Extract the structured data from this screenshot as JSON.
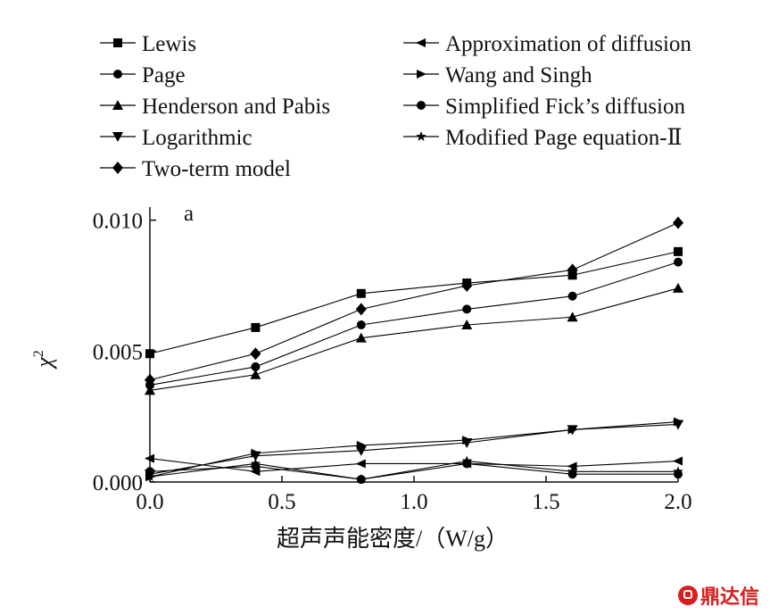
{
  "chart_data": {
    "type": "line",
    "panel_label": "a",
    "xlabel": "超声声能密度/（W/g）",
    "ylabel": "χ",
    "ylabel_superscript": "2",
    "x": [
      0.0,
      0.4,
      0.8,
      1.2,
      1.6,
      2.0
    ],
    "xlim": [
      0.0,
      2.0
    ],
    "ylim": [
      0.0,
      0.0105
    ],
    "xticks": [
      "0.0",
      "0.5",
      "1.0",
      "1.5",
      "2.0"
    ],
    "xtick_values": [
      0.0,
      0.5,
      1.0,
      1.5,
      2.0
    ],
    "yticks": [
      "0.000",
      "0.005",
      "0.010"
    ],
    "ytick_values": [
      0.0,
      0.005,
      0.01
    ],
    "grid": false,
    "legend_position": "top",
    "series": [
      {
        "name": "Lewis",
        "marker": "square",
        "values": [
          0.0049,
          0.0059,
          0.0072,
          0.0076,
          0.0079,
          0.0088
        ]
      },
      {
        "name": "Page",
        "marker": "circle",
        "values": [
          0.0037,
          0.0044,
          0.006,
          0.0066,
          0.0071,
          0.0084
        ]
      },
      {
        "name": "Henderson and Pabis",
        "marker": "triangle-up",
        "values": [
          0.0035,
          0.0041,
          0.0055,
          0.006,
          0.0063,
          0.0074
        ]
      },
      {
        "name": "Logarithmic",
        "marker": "triangle-down",
        "values": [
          0.0003,
          0.001,
          0.0012,
          0.0015,
          0.002,
          0.0022
        ]
      },
      {
        "name": "Two-term model",
        "marker": "diamond",
        "values": [
          0.0039,
          0.0049,
          0.0066,
          0.0075,
          0.0081,
          0.0099
        ]
      },
      {
        "name": "Approximation of diffusion",
        "marker": "triangle-left",
        "values": [
          0.0009,
          0.0004,
          0.0007,
          0.0007,
          0.0006,
          0.0008
        ]
      },
      {
        "name": "Wang and Singh",
        "marker": "triangle-right",
        "values": [
          0.0002,
          0.0011,
          0.0014,
          0.0016,
          0.002,
          0.0023
        ]
      },
      {
        "name": "Simplified Fick’s diffusion",
        "marker": "circle",
        "values": [
          0.0004,
          0.0006,
          0.0001,
          0.0007,
          0.0003,
          0.0003
        ]
      },
      {
        "name": "Modified Page equation-Ⅱ",
        "marker": "star",
        "values": [
          0.0002,
          0.0007,
          0.0001,
          0.0008,
          0.0004,
          0.0004
        ]
      }
    ]
  },
  "watermark": {
    "text": "鼎达信",
    "color": "#d81e1e"
  }
}
